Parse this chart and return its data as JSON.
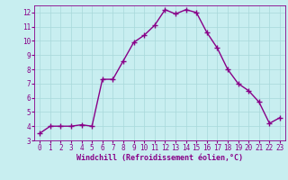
{
  "x": [
    0,
    1,
    2,
    3,
    4,
    5,
    6,
    7,
    8,
    9,
    10,
    11,
    12,
    13,
    14,
    15,
    16,
    17,
    18,
    19,
    20,
    21,
    22,
    23
  ],
  "y": [
    3.5,
    4.0,
    4.0,
    4.0,
    4.1,
    4.0,
    7.3,
    7.3,
    8.6,
    9.9,
    10.4,
    11.1,
    12.2,
    11.9,
    12.2,
    12.0,
    10.6,
    9.5,
    8.0,
    7.0,
    6.5,
    5.7,
    4.2,
    4.6
  ],
  "line_color": "#880088",
  "marker": "+",
  "marker_size": 4,
  "bg_color": "#c8eef0",
  "grid_color": "#a8d8da",
  "xlabel": "Windchill (Refroidissement éolien,°C)",
  "ylim": [
    3,
    12.5
  ],
  "xlim": [
    -0.5,
    23.5
  ],
  "yticks": [
    3,
    4,
    5,
    6,
    7,
    8,
    9,
    10,
    11,
    12
  ],
  "xticks": [
    0,
    1,
    2,
    3,
    4,
    5,
    6,
    7,
    8,
    9,
    10,
    11,
    12,
    13,
    14,
    15,
    16,
    17,
    18,
    19,
    20,
    21,
    22,
    23
  ],
  "tick_color": "#880088",
  "label_color": "#880088",
  "tick_fontsize": 5.5,
  "xlabel_fontsize": 6.0,
  "linewidth": 1.0,
  "markeredgewidth": 1.0
}
